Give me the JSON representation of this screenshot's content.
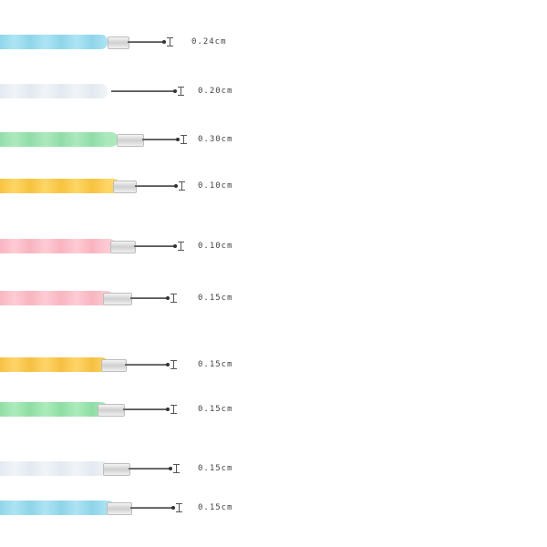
{
  "tools": [
    {
      "size": "0.24cm",
      "color": "#9fe0f2",
      "accent": "#7ccfe8"
    },
    {
      "size": "0.20cm",
      "color": "#eef3f8",
      "accent": "#dfe6ee"
    },
    {
      "size": "0.30cm",
      "color": "#9de6b2",
      "accent": "#7fd79a"
    },
    {
      "size": "0.10cm",
      "color": "#ffcf4a",
      "accent": "#f6b91f"
    },
    {
      "size": "0.10cm",
      "color": "#ffc2cc",
      "accent": "#f7a8b6"
    },
    {
      "size": "0.15cm",
      "color": "#ffc3cd",
      "accent": "#f7a9b6"
    },
    {
      "size": "0.15cm",
      "color": "#ffcd4d",
      "accent": "#f4b623"
    },
    {
      "size": "0.15cm",
      "color": "#9ee8b0",
      "accent": "#7cd895"
    },
    {
      "size": "0.15cm",
      "color": "#eef3f8",
      "accent": "#dfe6ee"
    },
    {
      "size": "0.15cm",
      "color": "#9fdff2",
      "accent": "#7ccde6"
    }
  ]
}
